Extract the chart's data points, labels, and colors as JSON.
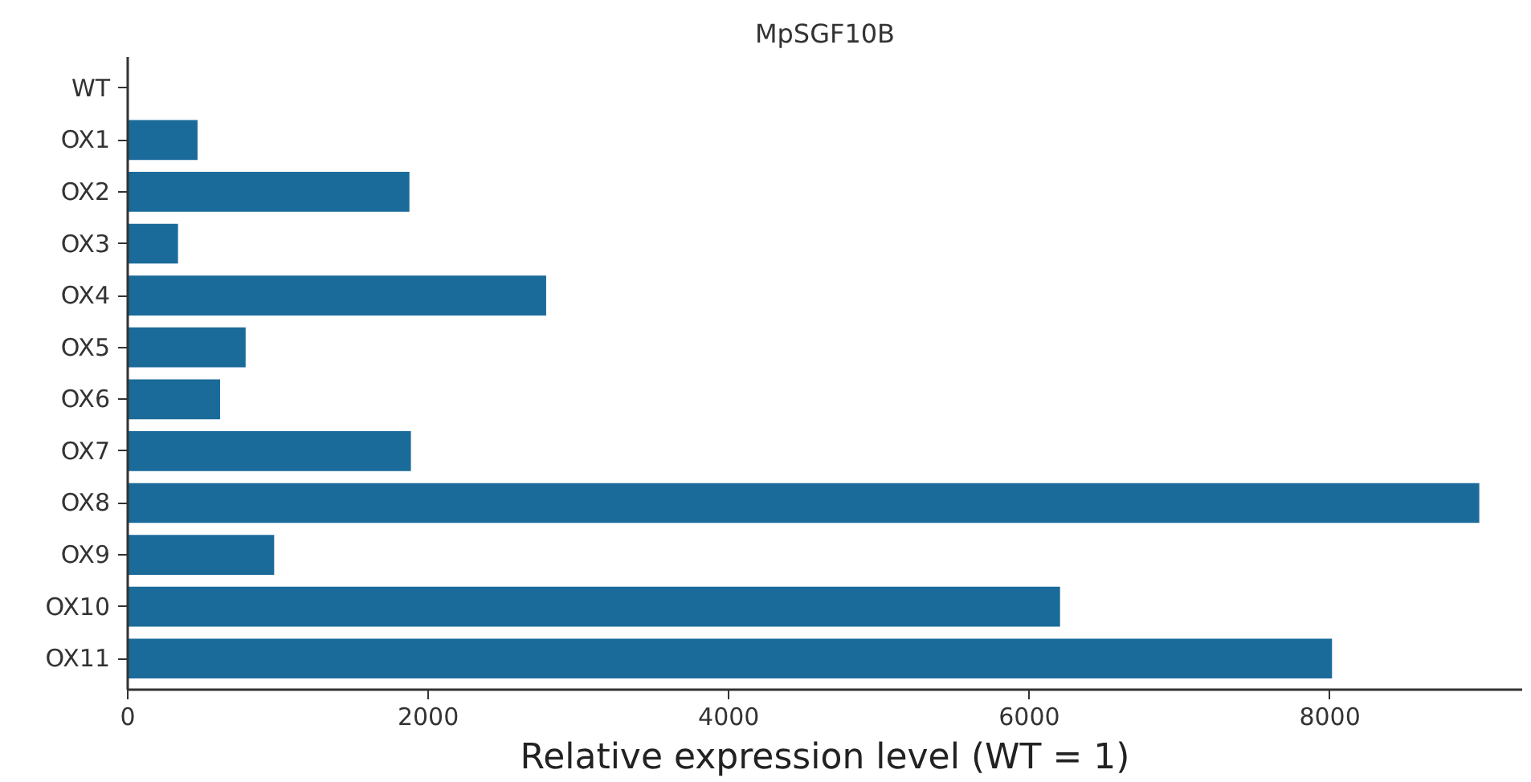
{
  "chart_data": {
    "type": "bar",
    "orientation": "horizontal",
    "title": "MpSGF10B",
    "xlabel": "Relative expression level (WT = 1)",
    "categories": [
      "WT",
      "OX1",
      "OX2",
      "OX3",
      "OX4",
      "OX5",
      "OX6",
      "OX7",
      "OX8",
      "OX9",
      "OX10",
      "OX11"
    ],
    "values": [
      1,
      470,
      1880,
      340,
      2790,
      790,
      620,
      1890,
      9000,
      980,
      6210,
      8020
    ],
    "color": "#1a6b9a",
    "xlim": [
      0,
      9280
    ],
    "xticks": [
      0,
      2000,
      4000,
      6000,
      8000
    ],
    "grid": false
  }
}
